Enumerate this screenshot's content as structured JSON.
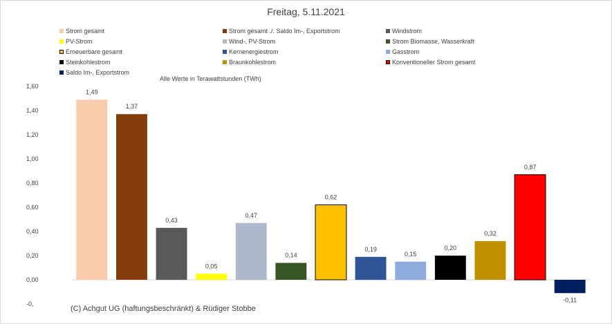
{
  "chart_data": {
    "type": "bar",
    "title": "Freitag, 5.11.2021",
    "subtitle": "Alle Werte in Terawattstunden (TWh)",
    "ylim": [
      -0.2,
      1.6
    ],
    "y_ticks": [
      "1,60",
      "1,40",
      "1,20",
      "1,00",
      "0,80",
      "0,60",
      "0,40",
      "0,20",
      "0,00",
      "-0,"
    ],
    "grid": false,
    "legend_position": "top",
    "categories": [
      "Strom gesamt",
      "Strom gesamt ./. Saldo Im-, Exportstrom",
      "Windstrom",
      "PV-Strom",
      "Wind-, PV-Strom",
      "Strom Biomasse, Wasserkraft",
      "Erneuerbare gesamt",
      "Kernenergiestrom",
      "Gasstrom",
      "Steinkohlestrom",
      "Braunkohlestrom",
      "Konventioneller Strom gesamt",
      "Saldo Im-, Exportstrom"
    ],
    "values": [
      1.49,
      1.37,
      0.43,
      0.05,
      0.47,
      0.14,
      0.62,
      0.19,
      0.15,
      0.2,
      0.32,
      0.87,
      -0.11
    ],
    "value_labels": [
      "1,49",
      "1,37",
      "0,43",
      "0,05",
      "0,47",
      "0,14",
      "0,62",
      "0,19",
      "0,15",
      "0,20",
      "0,32",
      "0,87",
      "-0,11"
    ],
    "colors": [
      "#f8cbad",
      "#843c0c",
      "#595959",
      "#ffff00",
      "#adb9ca",
      "#375623",
      "#ffc000",
      "#2f5597",
      "#8faadc",
      "#000000",
      "#bf9000",
      "#ff0000",
      "#002060"
    ],
    "outlined": [
      false,
      false,
      false,
      false,
      false,
      false,
      true,
      false,
      false,
      false,
      false,
      true,
      false
    ]
  },
  "footer": {
    "copyright": "(C) Achgut UG (haftungsbeschränkt) & Rüdiger Stobbe"
  }
}
